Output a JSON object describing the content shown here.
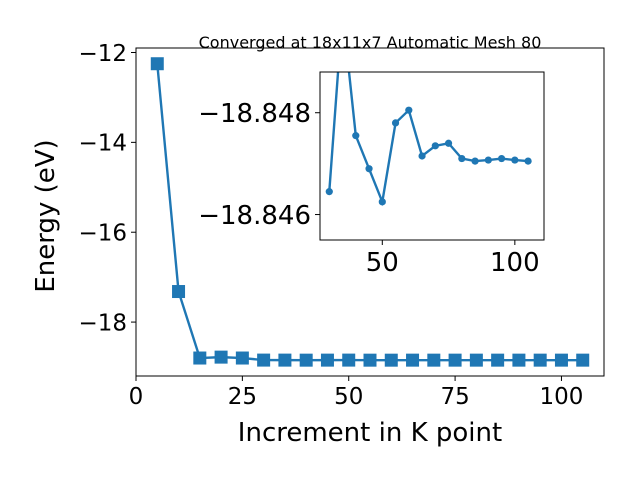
{
  "chart_data": [
    {
      "type": "line",
      "title": "Converged at 18x11x7 Automatic Mesh 80",
      "xlabel": "Increment in K point",
      "ylabel": "Energy (eV)",
      "xlim": [
        0,
        110
      ],
      "ylim": [
        -19.2,
        -11.9
      ],
      "xticks": [
        0,
        25,
        50,
        75,
        100
      ],
      "xtick_labels": [
        "0",
        "25",
        "50",
        "75",
        "100"
      ],
      "yticks": [
        -18,
        -16,
        -14,
        -12
      ],
      "ytick_labels": [
        "−18",
        "−16",
        "−14",
        "−12"
      ],
      "marker": "square",
      "color": "#1f77b4",
      "grid": false,
      "series": [
        {
          "x": [
            5,
            10,
            15,
            20,
            25,
            30,
            35,
            40,
            45,
            50,
            55,
            60,
            65,
            70,
            75,
            80,
            85,
            90,
            95,
            100,
            105
          ],
          "y": [
            -12.25,
            -17.32,
            -18.8,
            -18.78,
            -18.8,
            -18.846,
            -18.8465,
            -18.8475,
            -18.8468,
            -18.8462,
            -18.8476,
            -18.8478,
            -18.8471,
            -18.8472,
            -18.8472,
            -18.8471,
            -18.8471,
            -18.8471,
            -18.8471,
            -18.8471,
            -18.8471
          ]
        }
      ]
    },
    {
      "type": "line",
      "title": "",
      "xlim": [
        26.5,
        111
      ],
      "ylim": [
        -18.8455,
        -18.8488
      ],
      "xticks": [
        50,
        100
      ],
      "xtick_labels": [
        "50",
        "100"
      ],
      "yticks": [
        -18.848,
        -18.846
      ],
      "ytick_labels": [
        "−18.848",
        "−18.846"
      ],
      "marker": "circle",
      "color": "#1f77b4",
      "grid": false,
      "series": [
        {
          "x": [
            30,
            35,
            40,
            45,
            50,
            55,
            60,
            65,
            70,
            75,
            80,
            85,
            90,
            95,
            100,
            105
          ],
          "y": [
            -18.84645,
            -18.85,
            -18.84755,
            -18.8469,
            -18.84625,
            -18.8478,
            -18.84805,
            -18.84715,
            -18.84735,
            -18.8474,
            -18.8471,
            -18.84705,
            -18.84707,
            -18.8471,
            -18.84707,
            -18.84705
          ]
        }
      ]
    }
  ]
}
